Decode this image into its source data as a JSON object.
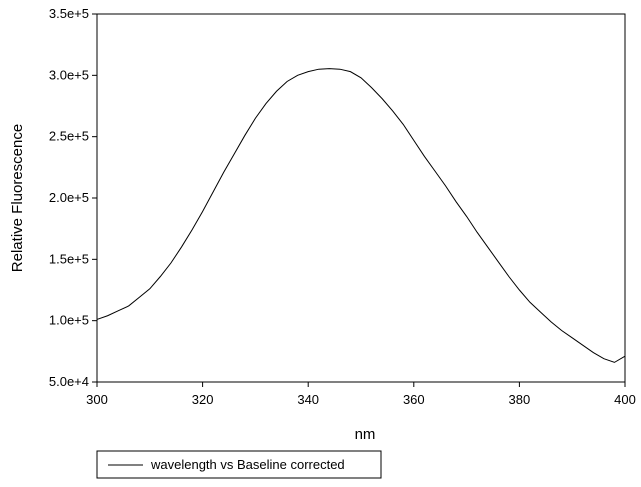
{
  "chart_data": {
    "type": "line",
    "title": "",
    "xlabel": "nm",
    "ylabel": "Relative Fluorescence",
    "xlim": [
      300,
      400
    ],
    "ylim": [
      50000,
      350000
    ],
    "x_ticks": [
      300,
      320,
      340,
      360,
      380,
      400
    ],
    "x_tick_labels": [
      "300",
      "320",
      "340",
      "360",
      "380",
      "400"
    ],
    "y_ticks": [
      50000,
      100000,
      150000,
      200000,
      250000,
      300000,
      350000
    ],
    "y_tick_labels": [
      "5.0e+4",
      "1.0e+5",
      "1.5e+5",
      "2.0e+5",
      "2.5e+5",
      "3.0e+5",
      "3.5e+5"
    ],
    "grid": false,
    "legend_position": "bottom-left",
    "color": "#000000",
    "series": [
      {
        "name": "wavelength vs Baseline corrected",
        "x": [
          300,
          302,
          304,
          306,
          308,
          310,
          312,
          314,
          316,
          318,
          320,
          322,
          324,
          326,
          328,
          330,
          332,
          334,
          336,
          338,
          340,
          342,
          344,
          346,
          348,
          350,
          352,
          354,
          356,
          358,
          360,
          362,
          364,
          366,
          368,
          370,
          372,
          374,
          376,
          378,
          380,
          382,
          384,
          386,
          388,
          390,
          392,
          394,
          396,
          398,
          400
        ],
        "values": [
          101000,
          104000,
          108000,
          112000,
          119000,
          126000,
          136000,
          147000,
          160000,
          174000,
          189000,
          205000,
          221000,
          236000,
          251000,
          265000,
          277000,
          287000,
          295000,
          300000,
          303000,
          305000,
          305500,
          305000,
          303000,
          298000,
          290000,
          281000,
          271000,
          260000,
          247000,
          234000,
          222000,
          210000,
          197000,
          185000,
          172000,
          160000,
          148000,
          136000,
          125000,
          115000,
          107000,
          99000,
          92000,
          86000,
          80000,
          74000,
          69000,
          66000,
          71000
        ]
      }
    ]
  }
}
